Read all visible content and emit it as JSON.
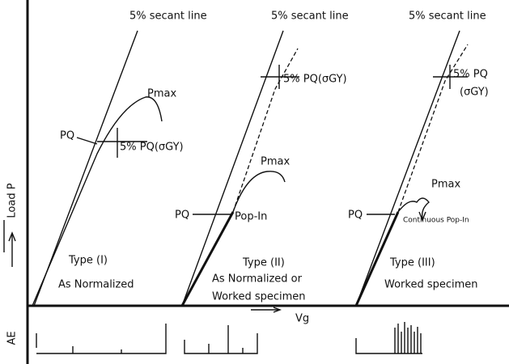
{
  "axis": {
    "y_label": "Load P",
    "x_label": "Vg",
    "ae_label": "AE"
  },
  "panels": [
    {
      "secant_label": "5% secant line",
      "pmax": "Pmax",
      "pq_5": "5% PQ(σGY)",
      "pq": "PQ",
      "type": "Type (I)",
      "desc": [
        "As Normalized"
      ]
    },
    {
      "secant_label": "5% secant line",
      "pmax": "Pmax",
      "pq_5": "5% PQ(σGY)",
      "pq": "PQ",
      "popin": "Pop-In",
      "type": "Type (II)",
      "desc": [
        "As Normalized or",
        "Worked specimen"
      ]
    },
    {
      "secant_label": "5% secant line",
      "pmax": "Pmax",
      "pq_5": [
        "5% PQ",
        "(σGY)"
      ],
      "pq": "PQ",
      "popin": "Continuous Pop-In",
      "type": "Type (III)",
      "desc": [
        "Worked specimen"
      ]
    }
  ]
}
